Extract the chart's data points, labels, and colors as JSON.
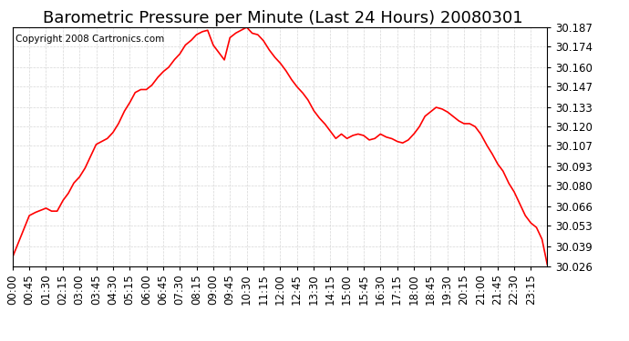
{
  "title": "Barometric Pressure per Minute (Last 24 Hours) 20080301",
  "copyright": "Copyright 2008 Cartronics.com",
  "line_color": "#ff0000",
  "background_color": "#ffffff",
  "grid_color": "#cccccc",
  "y_min": 30.026,
  "y_max": 30.187,
  "y_ticks": [
    30.026,
    30.039,
    30.053,
    30.066,
    30.08,
    30.093,
    30.107,
    30.12,
    30.133,
    30.147,
    30.16,
    30.174,
    30.187
  ],
  "x_tick_labels": [
    "00:00",
    "00:45",
    "01:30",
    "02:15",
    "03:00",
    "03:45",
    "04:30",
    "05:15",
    "06:00",
    "06:45",
    "07:30",
    "08:15",
    "09:00",
    "09:45",
    "10:30",
    "11:15",
    "12:00",
    "12:45",
    "13:30",
    "14:15",
    "15:00",
    "15:45",
    "16:30",
    "17:15",
    "18:00",
    "18:45",
    "19:30",
    "20:15",
    "21:00",
    "21:45",
    "22:30",
    "23:15"
  ],
  "title_fontsize": 13,
  "tick_fontsize": 8.5,
  "copyright_fontsize": 7.5,
  "line_width": 1.2,
  "keypoints": {
    "0": 30.032,
    "45": 30.06,
    "60": 30.062,
    "90": 30.065,
    "105": 30.063,
    "120": 30.063,
    "135": 30.07,
    "150": 30.075,
    "165": 30.082,
    "180": 30.086,
    "195": 30.092,
    "210": 30.1,
    "225": 30.108,
    "240": 30.11,
    "255": 30.112,
    "270": 30.116,
    "285": 30.122,
    "300": 30.13,
    "315": 30.136,
    "330": 30.143,
    "345": 30.145,
    "360": 30.145,
    "375": 30.148,
    "390": 30.153,
    "405": 30.157,
    "420": 30.16,
    "435": 30.165,
    "450": 30.169,
    "465": 30.175,
    "480": 30.178,
    "495": 30.182,
    "510": 30.184,
    "525": 30.185,
    "540": 30.175,
    "555": 30.17,
    "570": 30.165,
    "585": 30.18,
    "600": 30.183,
    "615": 30.185,
    "630": 30.187,
    "645": 30.183,
    "660": 30.182,
    "675": 30.178,
    "690": 30.172,
    "705": 30.167,
    "720": 30.163,
    "735": 30.158,
    "750": 30.152,
    "765": 30.147,
    "780": 30.143,
    "795": 30.138,
    "810": 30.131,
    "825": 30.126,
    "840": 30.122,
    "855": 30.117,
    "870": 30.112,
    "885": 30.115,
    "900": 30.112,
    "915": 30.114,
    "930": 30.115,
    "945": 30.114,
    "960": 30.111,
    "975": 30.112,
    "990": 30.115,
    "1005": 30.113,
    "1020": 30.112,
    "1035": 30.11,
    "1050": 30.109,
    "1065": 30.111,
    "1080": 30.115,
    "1095": 30.12,
    "1110": 30.127,
    "1125": 30.13,
    "1140": 30.133,
    "1155": 30.132,
    "1170": 30.13,
    "1185": 30.127,
    "1200": 30.124,
    "1215": 30.122,
    "1230": 30.122,
    "1245": 30.12,
    "1260": 30.115,
    "1275": 30.108,
    "1290": 30.102,
    "1305": 30.095,
    "1320": 30.09,
    "1335": 30.082,
    "1350": 30.076,
    "1365": 30.068,
    "1380": 30.06,
    "1395": 30.055,
    "1410": 30.052,
    "1425": 30.044,
    "1439": 30.027
  }
}
